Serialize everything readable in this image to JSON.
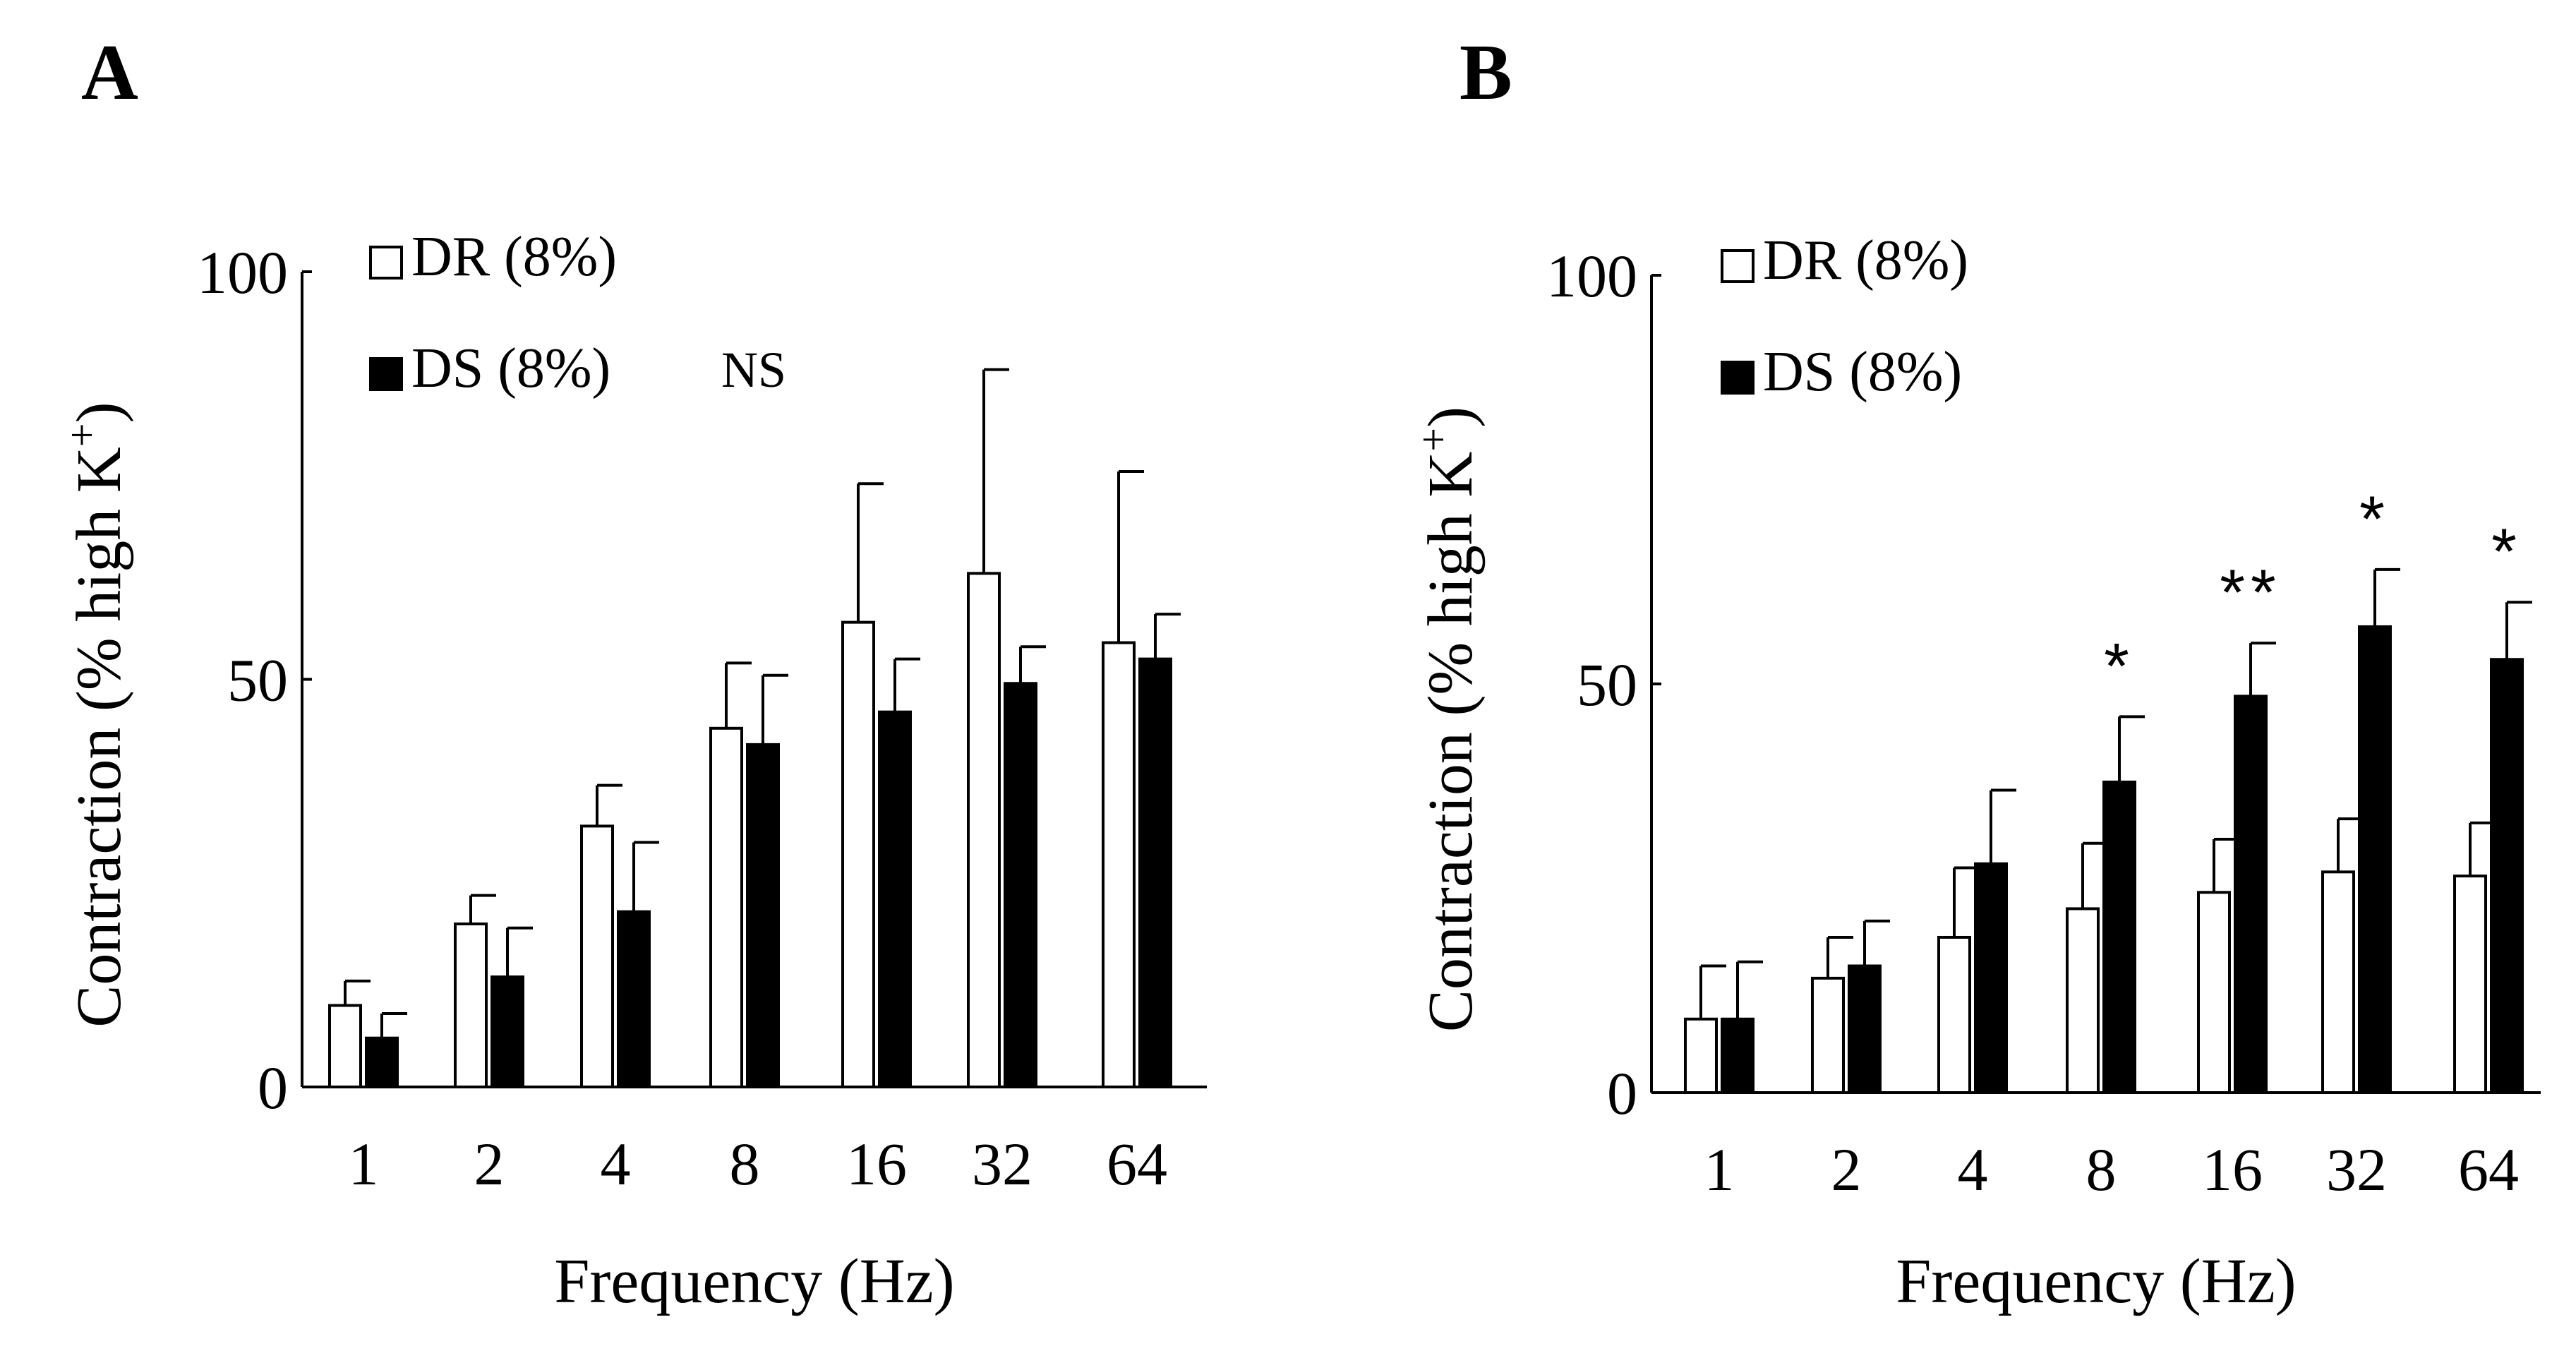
{
  "chart_data": [
    {
      "id": "A",
      "type": "bar",
      "panel_label": "A",
      "xlabel": "Frequency (Hz)",
      "ylabel": "Contraction (% high K",
      "ylabel_sup": "+",
      "ylabel_end": ")",
      "ylim": [
        0,
        100
      ],
      "yticks": [
        0,
        50,
        100
      ],
      "categories": [
        "1",
        "2",
        "4",
        "8",
        "16",
        "32",
        "64"
      ],
      "legend_position": "top-left",
      "series": [
        {
          "name": "DR (8%)",
          "fill": "#ffffff",
          "values": [
            10,
            20,
            32,
            44,
            57,
            63,
            54.5
          ],
          "errors": [
            3,
            3.5,
            5,
            8,
            17,
            25,
            21
          ]
        },
        {
          "name": "DS (8%)",
          "fill": "#000000",
          "values": [
            6,
            13.5,
            21.5,
            42,
            46,
            49.5,
            52.5
          ],
          "errors": [
            3,
            6,
            8.5,
            8.5,
            6.5,
            4.5,
            5.5
          ]
        }
      ],
      "annotations": [
        {
          "text": "NS"
        }
      ],
      "stars": [
        "",
        "",
        "",
        "",
        "",
        "",
        ""
      ]
    },
    {
      "id": "B",
      "type": "bar",
      "panel_label": "B",
      "xlabel": "Frequency (Hz)",
      "ylabel": "Contraction (% high K",
      "ylabel_sup": "+",
      "ylabel_end": ")",
      "ylim": [
        0,
        100
      ],
      "yticks": [
        0,
        50,
        100
      ],
      "categories": [
        "1",
        "2",
        "4",
        "8",
        "16",
        "32",
        "64"
      ],
      "legend_position": "top-left",
      "series": [
        {
          "name": "DR (8%)",
          "fill": "#ffffff",
          "values": [
            9,
            14,
            19,
            22.5,
            24.5,
            27,
            26.5
          ],
          "errors": [
            6.5,
            5,
            8.5,
            8,
            6.5,
            6.5,
            6.5
          ]
        },
        {
          "name": "DS (8%)",
          "fill": "#000000",
          "values": [
            9,
            15.5,
            28,
            38,
            48.5,
            57,
            53
          ],
          "errors": [
            7,
            5.5,
            9,
            8,
            6.5,
            7,
            7
          ]
        }
      ],
      "annotations": [],
      "stars": [
        "",
        "",
        "",
        "*",
        "**",
        "*",
        "*"
      ]
    }
  ]
}
